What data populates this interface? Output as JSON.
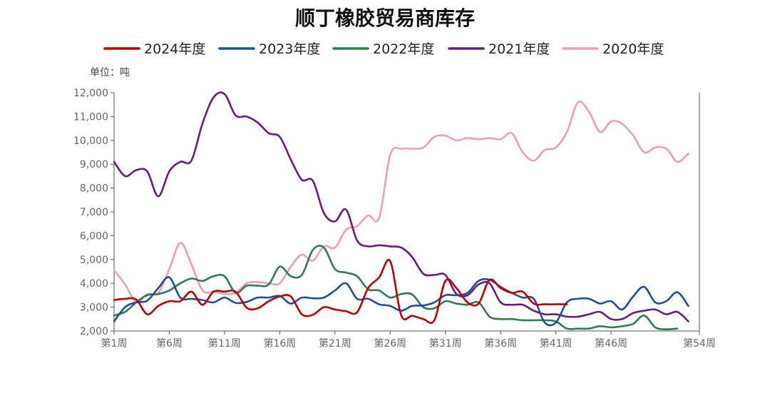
{
  "chart_data": {
    "type": "line",
    "title": "顺丁橡胶贸易商库存",
    "unit_label": "单位：吨",
    "y_ticks": [
      "2,000",
      "3,000",
      "4,000",
      "5,000",
      "6,000",
      "7,000",
      "8,000",
      "9,000",
      "10,000",
      "11,000",
      "12,000"
    ],
    "ylim": [
      2000,
      12000
    ],
    "x_range": [
      1,
      54
    ],
    "x_ticks": [
      {
        "week": 1,
        "label": "第1周"
      },
      {
        "week": 6,
        "label": "第6周"
      },
      {
        "week": 11,
        "label": "第11周"
      },
      {
        "week": 16,
        "label": "第16周"
      },
      {
        "week": 21,
        "label": "第21周"
      },
      {
        "week": 26,
        "label": "第26周"
      },
      {
        "week": 31,
        "label": "第31周"
      },
      {
        "week": 36,
        "label": "第36周"
      },
      {
        "week": 41,
        "label": "第41周"
      },
      {
        "week": 46,
        "label": "第46周"
      },
      {
        "week": 54,
        "label": "第54周"
      }
    ],
    "series": [
      {
        "name": "2024年度",
        "color": "#c00000",
        "values": [
          3300,
          3350,
          3320,
          2700,
          3050,
          3250,
          3250,
          3650,
          3100,
          3650,
          3650,
          3650,
          2980,
          2950,
          3250,
          3450,
          3450,
          2700,
          2680,
          3000,
          2900,
          2830,
          2780,
          3800,
          4250,
          4930,
          2650,
          2640,
          2500,
          2450,
          4100,
          3800,
          3200,
          3150,
          4150,
          3800,
          3600,
          3650,
          3150,
          3120,
          3120,
          3120
        ]
      },
      {
        "name": "2023年度",
        "color": "#1f4e9a",
        "values": [
          2400,
          3000,
          3200,
          3270,
          3800,
          4250,
          3400,
          3350,
          3300,
          3200,
          3400,
          3180,
          3220,
          3400,
          3400,
          3470,
          3150,
          3400,
          3370,
          3400,
          3700,
          4000,
          3350,
          3350,
          3120,
          3050,
          2850,
          3050,
          3070,
          3200,
          3500,
          3500,
          3600,
          4100,
          4150,
          3850,
          3600,
          3400,
          3350,
          2350,
          2350,
          3200,
          3350,
          3350,
          3150,
          3250,
          2900,
          3450,
          3850,
          3200,
          3250,
          3630,
          3050
        ]
      },
      {
        "name": "2022年度",
        "color": "#2e7d4f",
        "values": [
          2650,
          2800,
          3200,
          3500,
          3550,
          3700,
          4000,
          4200,
          4100,
          4300,
          4300,
          3600,
          3900,
          3900,
          3950,
          4700,
          4300,
          4350,
          5400,
          5500,
          4600,
          4450,
          4300,
          3750,
          3700,
          3400,
          3550,
          3530,
          3000,
          2950,
          3250,
          3150,
          3100,
          3200,
          2600,
          2500,
          2500,
          2450,
          2450,
          2450,
          2400,
          2100,
          2100,
          2100,
          2200,
          2150,
          2200,
          2300,
          2650,
          2150,
          2070,
          2100
        ]
      },
      {
        "name": "2021年度",
        "color": "#6a1b7e",
        "values": [
          9100,
          8500,
          8750,
          8700,
          7650,
          8700,
          9100,
          9150,
          10700,
          11800,
          11950,
          11050,
          11000,
          10750,
          10300,
          10150,
          9200,
          8350,
          8300,
          6950,
          6600,
          7100,
          5800,
          5550,
          5600,
          5550,
          5500,
          5100,
          4400,
          4350,
          4350,
          3550,
          3500,
          3950,
          4000,
          3200,
          3100,
          3100,
          2850,
          2700,
          2700,
          2600,
          2600,
          2700,
          2800,
          2500,
          2500,
          2750,
          2850,
          2900,
          2700,
          2800,
          2400
        ]
      },
      {
        "name": "2020年度",
        "color": "#f0a0aa",
        "values": [
          4550,
          3950,
          3200,
          3550,
          3600,
          4600,
          5700,
          4800,
          3700,
          3650,
          3550,
          3600,
          4000,
          4050,
          4000,
          4000,
          4700,
          5200,
          4950,
          5550,
          5500,
          6250,
          6400,
          6850,
          6750,
          9400,
          9650,
          9650,
          9700,
          10150,
          10200,
          10000,
          10100,
          10050,
          10100,
          10050,
          10300,
          9500,
          9150,
          9600,
          9700,
          10350,
          11600,
          11200,
          10350,
          10800,
          10700,
          10200,
          9500,
          9700,
          9650,
          9100,
          9450
        ]
      }
    ]
  }
}
